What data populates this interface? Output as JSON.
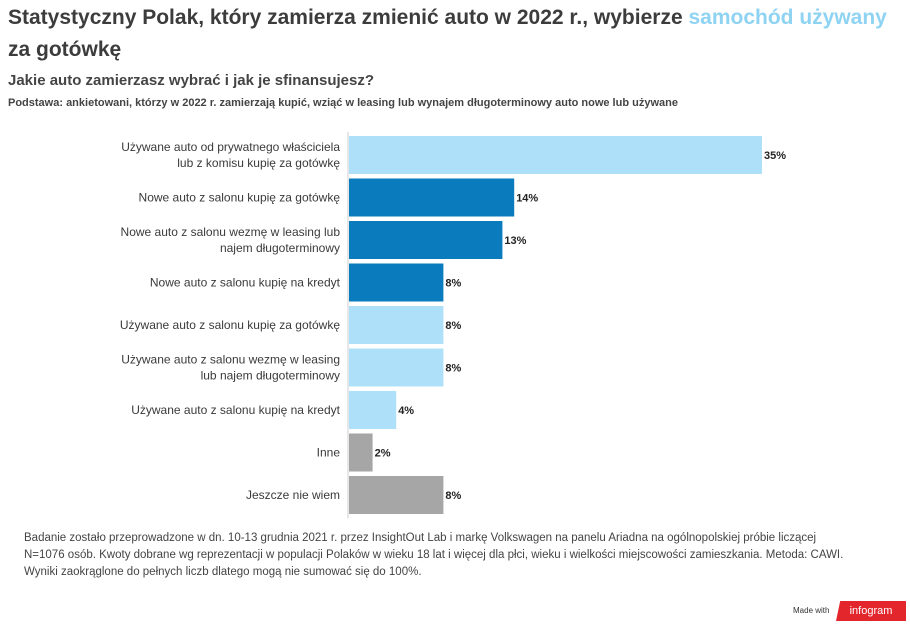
{
  "header": {
    "title_main": "Statystyczny Polak, który zamierza zmienić auto w 2022 r., wybierze ",
    "title_highlight": "samochód używany",
    "title_end": " za gotówkę",
    "subtitle": "Jakie auto zamierzasz wybrać i jak je sfinansujesz?",
    "basis": "Podstawa: ankietowani, którzy w 2022 r. zamierzają kupić, wziąć w leasing lub wynajem długoterminowy auto nowe lub używane"
  },
  "chart_data": {
    "type": "bar",
    "orientation": "horizontal",
    "categories": [
      "Używane auto od prywatnego właściciela lub z komisu kupię za gotówkę",
      "Nowe auto z salonu kupię za gotówkę",
      "Nowe auto z salonu wezmę w leasing lub najem długoterminowy",
      "Nowe auto z salonu kupię na kredyt",
      "Używane auto z salonu kupię za gotówkę",
      "Używane auto z salonu wezmę w leasing lub najem długoterminowy",
      "Używane auto z salonu kupię na kredyt",
      "Inne",
      "Jeszcze nie wiem"
    ],
    "category_lines": [
      [
        "Używane auto od prywatnego właściciela",
        "lub z komisu kupię za gotówkę"
      ],
      [
        "Nowe auto z salonu kupię za gotówkę"
      ],
      [
        "Nowe auto z salonu wezmę w leasing lub",
        "najem długoterminowy"
      ],
      [
        "Nowe auto z salonu kupię na kredyt"
      ],
      [
        "Używane auto z salonu kupię za gotówkę"
      ],
      [
        "Używane auto z salonu wezmę w leasing",
        "lub najem długoterminowy"
      ],
      [
        "Używane auto z salonu kupię na kredyt"
      ],
      [
        "Inne"
      ],
      [
        "Jeszcze nie wiem"
      ]
    ],
    "values": [
      35,
      14,
      13,
      8,
      8,
      8,
      4,
      2,
      8
    ],
    "value_labels": [
      "35%",
      "14%",
      "13%",
      "8%",
      "8%",
      "8%",
      "4%",
      "2%",
      "8%"
    ],
    "colors": [
      "#aee0fa",
      "#0a7bbd",
      "#0a7bbd",
      "#0a7bbd",
      "#aee0fa",
      "#aee0fa",
      "#aee0fa",
      "#a6a6a6",
      "#a6a6a6"
    ],
    "xlim": [
      0,
      35
    ],
    "grid": false,
    "legend": "none"
  },
  "footnote": "Badanie zostało przeprowadzone w dn. 10-13 grudnia 2021 r. przez InsightOut Lab i markę Volkswagen na panelu Ariadna na ogólnopolskiej próbie liczącej N=1076 osób. Kwoty dobrane wg reprezentacji w populacji Polaków w wieku 18 lat i więcej dla płci, wieku i wielkości miejscowości zamieszkania. Metoda: CAWI. Wyniki zaokrąglone do pełnych liczb dlatego mogą nie sumować się do 100%.",
  "branding": {
    "made_with": "Made with",
    "logo_text": "infogram"
  }
}
